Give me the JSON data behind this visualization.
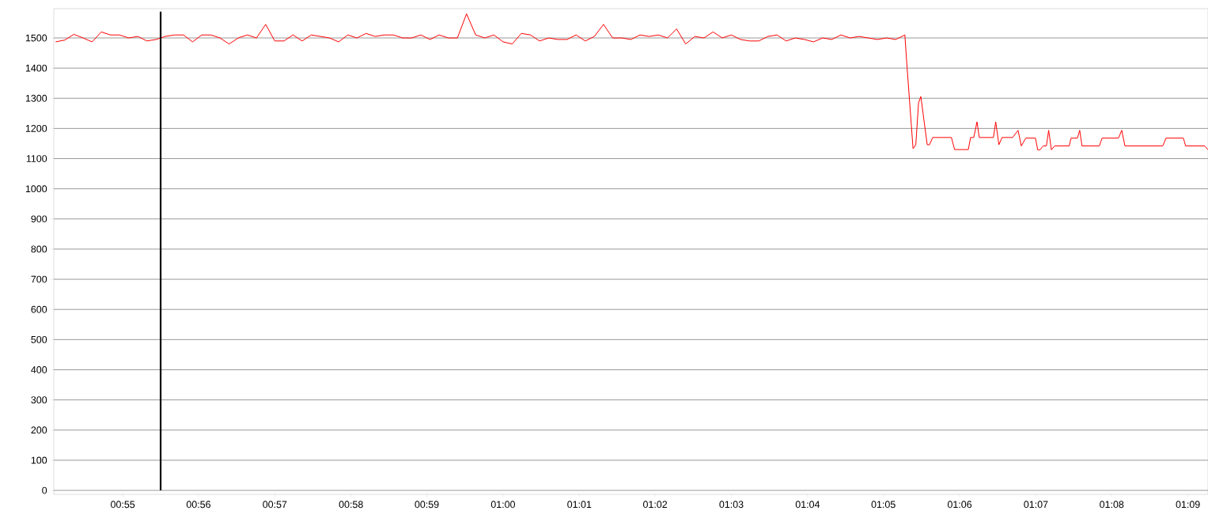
{
  "chart_data": {
    "type": "line",
    "x": [
      0.902,
      0.904,
      0.906,
      0.908,
      0.91,
      0.912,
      0.914,
      0.916,
      0.918,
      0.92,
      0.922,
      0.924,
      0.926,
      0.928,
      0.93,
      0.932,
      0.934,
      0.936,
      0.938,
      0.94,
      0.942,
      0.944,
      0.946,
      0.948,
      0.95,
      0.952,
      0.954,
      0.956,
      0.958,
      0.96,
      0.962,
      0.964,
      0.966,
      0.968,
      0.97,
      0.972,
      0.974,
      0.976,
      0.978,
      0.98,
      0.982,
      0.984,
      0.986,
      0.988,
      0.99,
      0.992,
      0.994,
      0.996,
      0.998,
      1.0,
      1.002,
      1.004,
      1.006,
      1.008,
      1.01,
      1.012,
      1.014,
      1.016,
      1.018,
      1.02,
      1.022,
      1.024,
      1.026,
      1.028,
      1.03,
      1.032,
      1.034,
      1.036,
      1.038,
      1.04,
      1.042,
      1.044,
      1.046,
      1.048,
      1.05,
      1.052,
      1.054,
      1.056,
      1.058,
      1.06,
      1.062,
      1.064,
      1.066,
      1.068,
      1.07,
      1.072,
      1.074,
      1.076,
      1.078,
      1.08,
      1.082,
      1.084,
      1.086,
      1.088,
      1.0885,
      1.0898,
      1.0904,
      1.091,
      1.0915,
      1.0929,
      1.0934,
      1.0941,
      1.0982,
      1.0989,
      1.1019,
      1.1024,
      1.1031,
      1.1038,
      1.1043,
      1.1074,
      1.1079,
      1.1086,
      1.1093,
      1.1116,
      1.1128,
      1.1135,
      1.1145,
      1.1166,
      1.1171,
      1.1176,
      1.1183,
      1.119,
      1.1195,
      1.1201,
      1.1208,
      1.124,
      1.1244,
      1.1258,
      1.1263,
      1.1268,
      1.1306,
      1.1312,
      1.1348,
      1.1355,
      1.1362,
      1.1445,
      1.1452,
      1.149,
      1.1495,
      1.1537,
      1.1544
    ],
    "series": [
      {
        "color": "#ff0000",
        "values": [
          1487,
          1493,
          1512,
          1500,
          1487,
          1520,
          1510,
          1510,
          1500,
          1505,
          1490,
          1495,
          1505,
          1510,
          1510,
          1487,
          1510,
          1510,
          1500,
          1480,
          1500,
          1510,
          1500,
          1545,
          1490,
          1490,
          1510,
          1490,
          1510,
          1505,
          1500,
          1487,
          1510,
          1500,
          1515,
          1505,
          1510,
          1510,
          1500,
          1500,
          1510,
          1495,
          1510,
          1500,
          1500,
          1580,
          1510,
          1500,
          1510,
          1487,
          1480,
          1515,
          1510,
          1490,
          1500,
          1495,
          1495,
          1510,
          1490,
          1505,
          1545,
          1500,
          1500,
          1495,
          1510,
          1505,
          1510,
          1500,
          1530,
          1480,
          1505,
          1500,
          1520,
          1500,
          1510,
          1495,
          1490,
          1490,
          1505,
          1510,
          1490,
          1500,
          1495,
          1487,
          1500,
          1495,
          1510,
          1500,
          1505,
          1500,
          1495,
          1500,
          1495,
          1510,
          1400,
          1133,
          1146,
          1285,
          1306,
          1146,
          1146,
          1170,
          1170,
          1130,
          1130,
          1170,
          1170,
          1222,
          1170,
          1170,
          1222,
          1146,
          1170,
          1170,
          1194,
          1142,
          1168,
          1168,
          1129,
          1129,
          1142,
          1142,
          1194,
          1129,
          1142,
          1142,
          1168,
          1168,
          1194,
          1142,
          1142,
          1168,
          1168,
          1194,
          1142,
          1142,
          1168,
          1168,
          1142,
          1142,
          1129
        ]
      }
    ],
    "xlim": [
      0.9016,
      1.1544
    ],
    "ylim": [
      -13,
      1597
    ],
    "xticks": [
      {
        "value": 0.9167,
        "label": "00:55"
      },
      {
        "value": 0.9333,
        "label": "00:56"
      },
      {
        "value": 0.95,
        "label": "00:57"
      },
      {
        "value": 0.9667,
        "label": "00:58"
      },
      {
        "value": 0.9833,
        "label": "00:59"
      },
      {
        "value": 1.0,
        "label": "01:00"
      },
      {
        "value": 1.0167,
        "label": "01:01"
      },
      {
        "value": 1.0333,
        "label": "01:02"
      },
      {
        "value": 1.05,
        "label": "01:03"
      },
      {
        "value": 1.0667,
        "label": "01:04"
      },
      {
        "value": 1.0833,
        "label": "01:05"
      },
      {
        "value": 1.1,
        "label": "01:06"
      },
      {
        "value": 1.1167,
        "label": "01:07"
      },
      {
        "value": 1.1333,
        "label": "01:08"
      },
      {
        "value": 1.15,
        "label": "01:09"
      }
    ],
    "yticks": [
      0,
      100,
      200,
      300,
      400,
      500,
      600,
      700,
      800,
      900,
      1000,
      1100,
      1200,
      1300,
      1400,
      1500
    ],
    "grid": "y",
    "ref_lines": [
      {
        "axis": "x",
        "value": 0.925,
        "color": "#000000"
      }
    ]
  }
}
